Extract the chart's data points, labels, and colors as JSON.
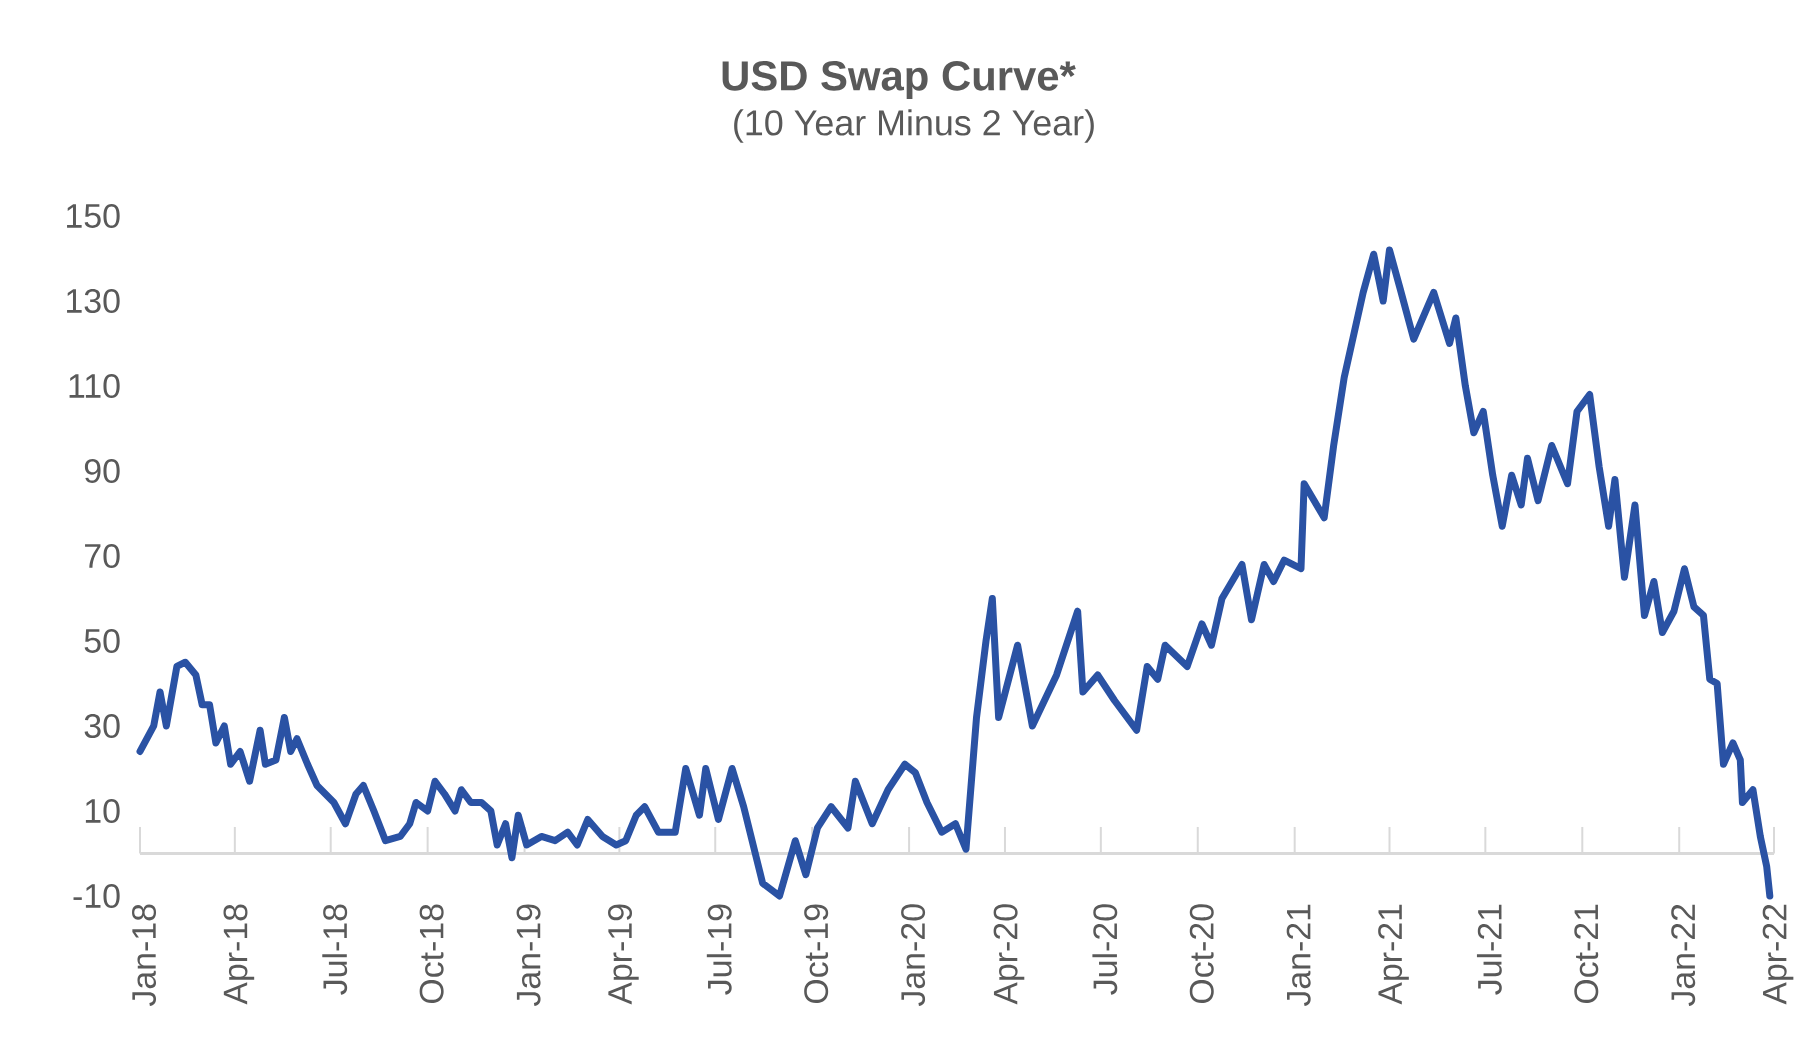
{
  "chart_data": {
    "type": "line",
    "title": "USD Swap Curve*",
    "subtitle": "(10 Year Minus 2 Year)",
    "color": "#2a52a4",
    "x": [
      "2018-01-01",
      "2018-01-14",
      "2018-01-20",
      "2018-01-26",
      "2018-02-05",
      "2018-02-13",
      "2018-02-23",
      "2018-03-01",
      "2018-03-08",
      "2018-03-14",
      "2018-03-22",
      "2018-03-28",
      "2018-04-06",
      "2018-04-15",
      "2018-04-25",
      "2018-04-30",
      "2018-05-10",
      "2018-05-18",
      "2018-05-24",
      "2018-05-30",
      "2018-06-09",
      "2018-06-18",
      "2018-07-04",
      "2018-07-15",
      "2018-07-25",
      "2018-08-01",
      "2018-08-11",
      "2018-08-22",
      "2018-09-05",
      "2018-09-14",
      "2018-09-20",
      "2018-10-01",
      "2018-10-08",
      "2018-10-17",
      "2018-10-27",
      "2018-11-02",
      "2018-11-11",
      "2018-11-21",
      "2018-11-30",
      "2018-12-06",
      "2018-12-14",
      "2018-12-20",
      "2018-12-26",
      "2019-01-03",
      "2019-01-17",
      "2019-01-30",
      "2019-02-11",
      "2019-02-20",
      "2019-03-02",
      "2019-03-16",
      "2019-03-29",
      "2019-04-07",
      "2019-04-17",
      "2019-04-25",
      "2019-05-08",
      "2019-05-24",
      "2019-06-03",
      "2019-06-16",
      "2019-06-22",
      "2019-07-04",
      "2019-07-17",
      "2019-07-28",
      "2019-08-15",
      "2019-08-31",
      "2019-09-15",
      "2019-09-25",
      "2019-10-06",
      "2019-10-19",
      "2019-11-04",
      "2019-11-11",
      "2019-11-27",
      "2019-12-12",
      "2019-12-28",
      "2020-01-07",
      "2020-01-18",
      "2020-02-01",
      "2020-02-14",
      "2020-02-24",
      "2020-03-05",
      "2020-03-14",
      "2020-03-20",
      "2020-03-26",
      "2020-04-13",
      "2020-04-27",
      "2020-05-20",
      "2020-06-09",
      "2020-06-14",
      "2020-06-28",
      "2020-07-14",
      "2020-08-04",
      "2020-08-14",
      "2020-08-24",
      "2020-08-31",
      "2020-09-21",
      "2020-10-05",
      "2020-10-14",
      "2020-10-24",
      "2020-11-12",
      "2020-11-21",
      "2020-12-03",
      "2020-12-12",
      "2020-12-22",
      "2021-01-07",
      "2021-01-10",
      "2021-01-29",
      "2021-02-07",
      "2021-02-17",
      "2021-02-26",
      "2021-03-07",
      "2021-03-17",
      "2021-03-26",
      "2021-04-01",
      "2021-04-11",
      "2021-04-24",
      "2021-05-13",
      "2021-05-28",
      "2021-06-03",
      "2021-06-12",
      "2021-06-20",
      "2021-06-29",
      "2021-07-08",
      "2021-07-17",
      "2021-07-26",
      "2021-08-04",
      "2021-08-10",
      "2021-08-20",
      "2021-09-02",
      "2021-09-17",
      "2021-09-26",
      "2021-10-08",
      "2021-10-17",
      "2021-10-26",
      "2021-11-01",
      "2021-11-10",
      "2021-11-20",
      "2021-11-29",
      "2021-12-08",
      "2021-12-16",
      "2021-12-27",
      "2022-01-06",
      "2022-01-15",
      "2022-01-24",
      "2022-01-30",
      "2022-02-06",
      "2022-02-12",
      "2022-02-21",
      "2022-02-28",
      "2022-03-02",
      "2022-03-12",
      "2022-03-19",
      "2022-03-25",
      "2022-03-28"
    ],
    "values": [
      24,
      30,
      38,
      30,
      44,
      45,
      42,
      35,
      35,
      26,
      30,
      21,
      24,
      17,
      29,
      21,
      22,
      32,
      24,
      27,
      21,
      16,
      12,
      7,
      14,
      16,
      10,
      3,
      4,
      7,
      12,
      10,
      17,
      14,
      10,
      15,
      12,
      12,
      10,
      2,
      7,
      -1,
      9,
      2,
      4,
      3,
      5,
      2,
      8,
      4,
      2,
      3,
      9,
      11,
      5,
      5,
      20,
      9,
      20,
      8,
      20,
      11,
      -7,
      -10,
      3,
      -5,
      6,
      11,
      6,
      17,
      7,
      15,
      21,
      19,
      12,
      5,
      7,
      1,
      32,
      50,
      60,
      32,
      49,
      30,
      42,
      57,
      38,
      42,
      36,
      29,
      44,
      41,
      49,
      44,
      54,
      49,
      60,
      68,
      55,
      68,
      64,
      69,
      67,
      87,
      79,
      96,
      112,
      122,
      132,
      141,
      130,
      142,
      133,
      121,
      132,
      120,
      126,
      110,
      99,
      104,
      89,
      77,
      89,
      82,
      93,
      83,
      96,
      87,
      104,
      108,
      91,
      77,
      88,
      65,
      82,
      56,
      64,
      52,
      57,
      67,
      58,
      56,
      41,
      40,
      21,
      26,
      22,
      12,
      15,
      4,
      -3,
      -10
    ],
    "xlim": [
      "2018-01-01",
      "2022-04-01"
    ],
    "xticks": [
      {
        "value": "2018-01-01",
        "label": "Jan-18"
      },
      {
        "value": "2018-04-01",
        "label": "Apr-18"
      },
      {
        "value": "2018-07-01",
        "label": "Jul-18"
      },
      {
        "value": "2018-10-01",
        "label": "Oct-18"
      },
      {
        "value": "2019-01-01",
        "label": "Jan-19"
      },
      {
        "value": "2019-04-01",
        "label": "Apr-19"
      },
      {
        "value": "2019-07-01",
        "label": "Jul-19"
      },
      {
        "value": "2019-10-01",
        "label": "Oct-19"
      },
      {
        "value": "2020-01-01",
        "label": "Jan-20"
      },
      {
        "value": "2020-04-01",
        "label": "Apr-20"
      },
      {
        "value": "2020-07-01",
        "label": "Jul-20"
      },
      {
        "value": "2020-10-01",
        "label": "Oct-20"
      },
      {
        "value": "2021-01-01",
        "label": "Jan-21"
      },
      {
        "value": "2021-04-01",
        "label": "Apr-21"
      },
      {
        "value": "2021-07-01",
        "label": "Jul-21"
      },
      {
        "value": "2021-10-01",
        "label": "Oct-21"
      },
      {
        "value": "2022-01-01",
        "label": "Jan-22"
      },
      {
        "value": "2022-04-01",
        "label": "Apr-22"
      }
    ],
    "ylim": [
      -10,
      150
    ],
    "yticks": [
      -10,
      10,
      30,
      50,
      70,
      90,
      110,
      130,
      150
    ]
  }
}
